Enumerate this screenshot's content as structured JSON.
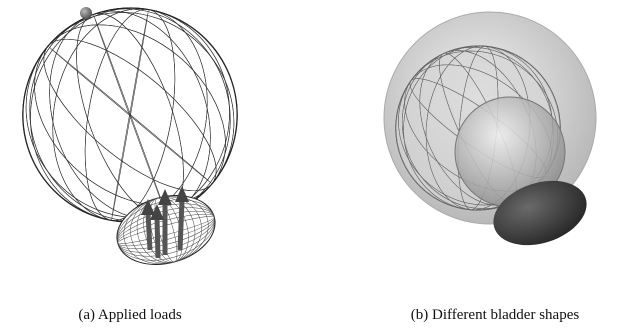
{
  "figure": {
    "subfigures": [
      {
        "caption": "(a) Applied loads"
      },
      {
        "caption": "(b) Different bladder shapes"
      }
    ]
  }
}
